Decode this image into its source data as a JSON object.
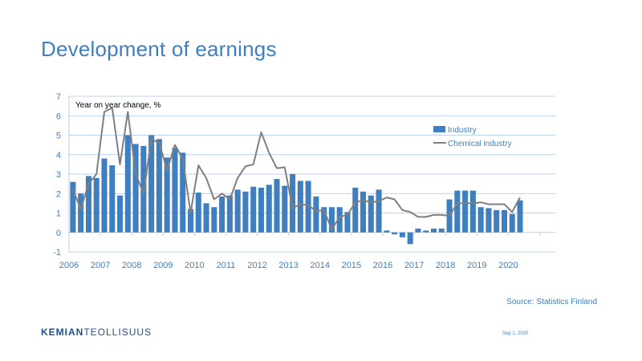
{
  "slide": {
    "title": "Development of earnings",
    "source": "Source: Statistics Finland",
    "logo_part1": "KEMIAN",
    "logo_part2": "TEOLLISUUS",
    "date": "Sep 1, 2020"
  },
  "colors": {
    "accent": "#3f7fbf",
    "bar": "#3f7fbf",
    "line": "#7f7f7f",
    "grid": "#a6c4e6",
    "logo": "#1f4f8f"
  },
  "chart_data": {
    "type": "bar",
    "annotation": "Year on year change, %",
    "ylim": [
      -1,
      7
    ],
    "yticks": [
      -1,
      0,
      1,
      2,
      3,
      4,
      5,
      6,
      7
    ],
    "xlim": [
      2006,
      2021.5
    ],
    "xticks": [
      2006,
      2007,
      2008,
      2009,
      2010,
      2011,
      2012,
      2013,
      2014,
      2015,
      2016,
      2017,
      2018,
      2019,
      2020
    ],
    "grid": true,
    "legend_position": "right",
    "series": [
      {
        "name": "Industry",
        "kind": "bar",
        "x": [
          2006.0,
          2006.25,
          2006.5,
          2006.75,
          2007.0,
          2007.25,
          2007.5,
          2007.75,
          2008.0,
          2008.25,
          2008.5,
          2008.75,
          2009.0,
          2009.25,
          2009.5,
          2009.75,
          2010.0,
          2010.25,
          2010.5,
          2010.75,
          2011.0,
          2011.25,
          2011.5,
          2011.75,
          2012.0,
          2012.25,
          2012.5,
          2012.75,
          2013.0,
          2013.25,
          2013.5,
          2013.75,
          2014.0,
          2014.25,
          2014.5,
          2014.75,
          2015.0,
          2015.25,
          2015.5,
          2015.75,
          2016.0,
          2016.25,
          2016.5,
          2016.75,
          2017.0,
          2017.25,
          2017.5,
          2017.75,
          2018.0,
          2018.25,
          2018.5,
          2018.75,
          2019.0,
          2019.25,
          2019.5,
          2019.75,
          2020.0,
          2020.25
        ],
        "values": [
          2.6,
          2.0,
          2.9,
          2.8,
          3.8,
          3.45,
          1.9,
          5.0,
          4.55,
          4.45,
          5.0,
          4.8,
          3.85,
          4.35,
          4.1,
          1.2,
          2.05,
          1.5,
          1.3,
          1.85,
          1.9,
          2.2,
          2.1,
          2.35,
          2.3,
          2.45,
          2.75,
          2.4,
          3.0,
          2.65,
          2.65,
          1.85,
          1.3,
          1.3,
          1.3,
          1.05,
          2.3,
          2.1,
          1.9,
          2.2,
          0.1,
          -0.1,
          -0.25,
          -0.6,
          0.2,
          0.1,
          0.2,
          0.2,
          1.7,
          2.15,
          2.15,
          2.15,
          1.3,
          1.25,
          1.15,
          1.15,
          0.95,
          1.65
        ]
      },
      {
        "name": "Chemical industry",
        "kind": "line",
        "x": [
          2006.0,
          2006.25,
          2006.5,
          2006.75,
          2007.0,
          2007.25,
          2007.5,
          2007.75,
          2008.0,
          2008.25,
          2008.5,
          2008.75,
          2009.0,
          2009.25,
          2009.5,
          2009.75,
          2010.0,
          2010.25,
          2010.5,
          2010.75,
          2011.0,
          2011.25,
          2011.5,
          2011.75,
          2012.0,
          2012.25,
          2012.5,
          2012.75,
          2013.0,
          2013.25,
          2013.5,
          2013.75,
          2014.0,
          2014.25,
          2014.5,
          2014.75,
          2015.0,
          2015.25,
          2015.5,
          2015.75,
          2016.0,
          2016.25,
          2016.5,
          2016.75,
          2017.0,
          2017.25,
          2017.5,
          2017.75,
          2018.0,
          2018.25,
          2018.5,
          2018.75,
          2019.0,
          2019.25,
          2019.5,
          2019.75,
          2020.0,
          2020.25
        ],
        "values": [
          2.2,
          1.2,
          2.5,
          3.0,
          6.2,
          6.4,
          3.5,
          6.2,
          3.0,
          2.0,
          4.8,
          4.6,
          3.2,
          4.5,
          3.8,
          1.0,
          3.45,
          2.8,
          1.7,
          2.0,
          1.7,
          2.8,
          3.4,
          3.5,
          5.15,
          4.1,
          3.3,
          3.35,
          1.25,
          1.45,
          1.4,
          1.1,
          1.15,
          0.15,
          0.8,
          0.9,
          1.55,
          1.65,
          1.55,
          1.6,
          1.8,
          1.7,
          1.15,
          1.05,
          0.8,
          0.8,
          0.9,
          0.9,
          0.85,
          1.5,
          1.5,
          1.5,
          1.55,
          1.45,
          1.45,
          1.45,
          1.05,
          1.8
        ]
      }
    ]
  }
}
